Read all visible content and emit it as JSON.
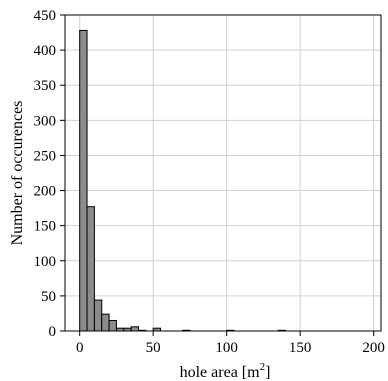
{
  "chart_data": {
    "type": "bar",
    "title": "",
    "xlabel": "hole area [m",
    "xlabel_sup": "2",
    "xlabel_end": "]",
    "ylabel": "Number of occurences",
    "xlim": [
      -10,
      205
    ],
    "ylim": [
      0,
      450
    ],
    "xticks": [
      0,
      50,
      100,
      150,
      200
    ],
    "yticks": [
      0,
      50,
      100,
      150,
      200,
      250,
      300,
      350,
      400,
      450
    ],
    "grid": true,
    "bin_width": 5,
    "bins": [
      {
        "start": 0,
        "count": 428
      },
      {
        "start": 5,
        "count": 177
      },
      {
        "start": 10,
        "count": 44
      },
      {
        "start": 15,
        "count": 24
      },
      {
        "start": 20,
        "count": 15
      },
      {
        "start": 25,
        "count": 4
      },
      {
        "start": 30,
        "count": 4
      },
      {
        "start": 35,
        "count": 6
      },
      {
        "start": 40,
        "count": 1
      },
      {
        "start": 50,
        "count": 4
      },
      {
        "start": 70,
        "count": 1
      },
      {
        "start": 100,
        "count": 1
      },
      {
        "start": 135,
        "count": 1
      }
    ],
    "bar_color": "#8c8c8c",
    "edge_color": "#000000"
  }
}
